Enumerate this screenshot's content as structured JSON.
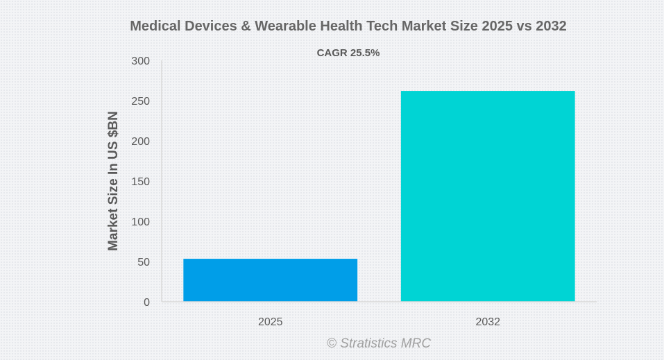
{
  "chart_data": {
    "type": "bar",
    "title": "Medical Devices & Wearable Health Tech Market Size 2025 vs 2032",
    "subtitle": "CAGR 25.5%",
    "xlabel": "",
    "ylabel": "Market Size In US $BN",
    "categories": [
      "2025",
      "2032"
    ],
    "values": [
      53.4,
      262
    ],
    "bar_colors": [
      "#009ee8",
      "#00d4d4"
    ],
    "ylim": [
      0,
      300
    ],
    "yticks": [
      0,
      50,
      100,
      150,
      200,
      250,
      300
    ],
    "grid": false,
    "legend": "none",
    "credit": "© Stratistics MRC"
  }
}
